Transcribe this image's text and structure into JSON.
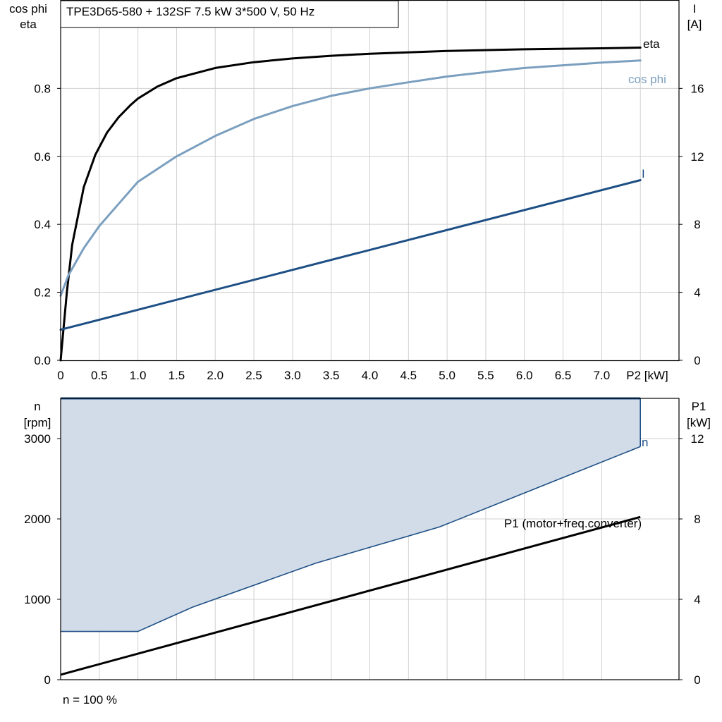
{
  "colors": {
    "eta": "#000000",
    "cos_phi": "#7b9fbf",
    "current": "#1d4f85",
    "speed": "#1d4f85",
    "envelope_fill": "#d2dce8",
    "envelope_line": "#1d4f85",
    "p1": "#000000",
    "grid": "#d0d0d0"
  },
  "chart_data": [
    {
      "type": "line",
      "title": "TPE3D65-580 + 132SF   7.5 kW   3*500 V, 50 Hz",
      "xlabel": "P2 [kW]",
      "ylabel_left": [
        "cos phi",
        "eta"
      ],
      "ylabel_right": [
        "I",
        "[A]"
      ],
      "xlim": [
        0,
        8.0
      ],
      "ylim_left": [
        0,
        1.06
      ],
      "ylim_right": [
        0,
        21.2
      ],
      "xticks": [
        "0",
        "0.5",
        "1.0",
        "1.5",
        "2.0",
        "2.5",
        "3.0",
        "3.5",
        "4.0",
        "4.5",
        "5.0",
        "5.5",
        "6.0",
        "6.5",
        "7.0"
      ],
      "yticks_left": [
        "0.0",
        "0.2",
        "0.4",
        "0.6",
        "0.8"
      ],
      "yticks_right": [
        "0",
        "4",
        "8",
        "12",
        "16"
      ],
      "grid": true,
      "series": [
        {
          "name": "eta",
          "axis": "left",
          "color_key": "eta",
          "x": [
            0,
            0.08,
            0.15,
            0.3,
            0.45,
            0.6,
            0.75,
            0.9,
            1.0,
            1.25,
            1.5,
            2.0,
            2.5,
            3.0,
            3.5,
            4.0,
            5.0,
            6.0,
            7.0,
            7.5
          ],
          "y": [
            0,
            0.2,
            0.34,
            0.51,
            0.605,
            0.67,
            0.715,
            0.75,
            0.77,
            0.805,
            0.83,
            0.86,
            0.877,
            0.888,
            0.896,
            0.902,
            0.91,
            0.915,
            0.918,
            0.92
          ]
        },
        {
          "name": "cos phi",
          "axis": "left",
          "color_key": "cos_phi",
          "x": [
            0,
            0.1,
            0.3,
            0.5,
            0.75,
            1.0,
            1.5,
            2.0,
            2.5,
            3.0,
            3.5,
            4.0,
            4.5,
            5.0,
            5.5,
            6.0,
            6.5,
            7.0,
            7.5
          ],
          "y": [
            0.19,
            0.25,
            0.33,
            0.395,
            0.46,
            0.525,
            0.6,
            0.66,
            0.71,
            0.748,
            0.778,
            0.8,
            0.818,
            0.835,
            0.848,
            0.86,
            0.868,
            0.876,
            0.882
          ]
        },
        {
          "name": "I",
          "axis": "right",
          "color_key": "current",
          "x": [
            0,
            7.5
          ],
          "y": [
            1.8,
            10.6
          ]
        }
      ]
    },
    {
      "type": "area",
      "xlim": [
        0,
        8.0
      ],
      "ylabel_left": [
        "n",
        "[rpm]"
      ],
      "ylabel_right": [
        "P1",
        "[kW]"
      ],
      "ylim_left": [
        0,
        3500
      ],
      "ylim_right": [
        0,
        14
      ],
      "yticks_left": [
        "0",
        "1000",
        "2000",
        "3000"
      ],
      "yticks_right": [
        "0",
        "4",
        "8",
        "12"
      ],
      "grid": true,
      "annotation": "n = 100 %",
      "series": [
        {
          "name": "n",
          "axis": "left",
          "color_key": "speed",
          "x": [
            0,
            7.5
          ],
          "y": [
            3500,
            3500
          ]
        },
        {
          "name": "operating range lower bound",
          "axis": "left",
          "color_key": "envelope_line",
          "x": [
            0,
            1.0,
            1.7,
            3.3,
            4.9,
            7.5
          ],
          "y": [
            600,
            600,
            900,
            1450,
            1900,
            2900
          ]
        },
        {
          "name": "P1 (motor+freq.converter)",
          "axis": "right",
          "color_key": "p1",
          "x": [
            0,
            7.5
          ],
          "y": [
            0.25,
            8.1
          ]
        }
      ]
    }
  ]
}
